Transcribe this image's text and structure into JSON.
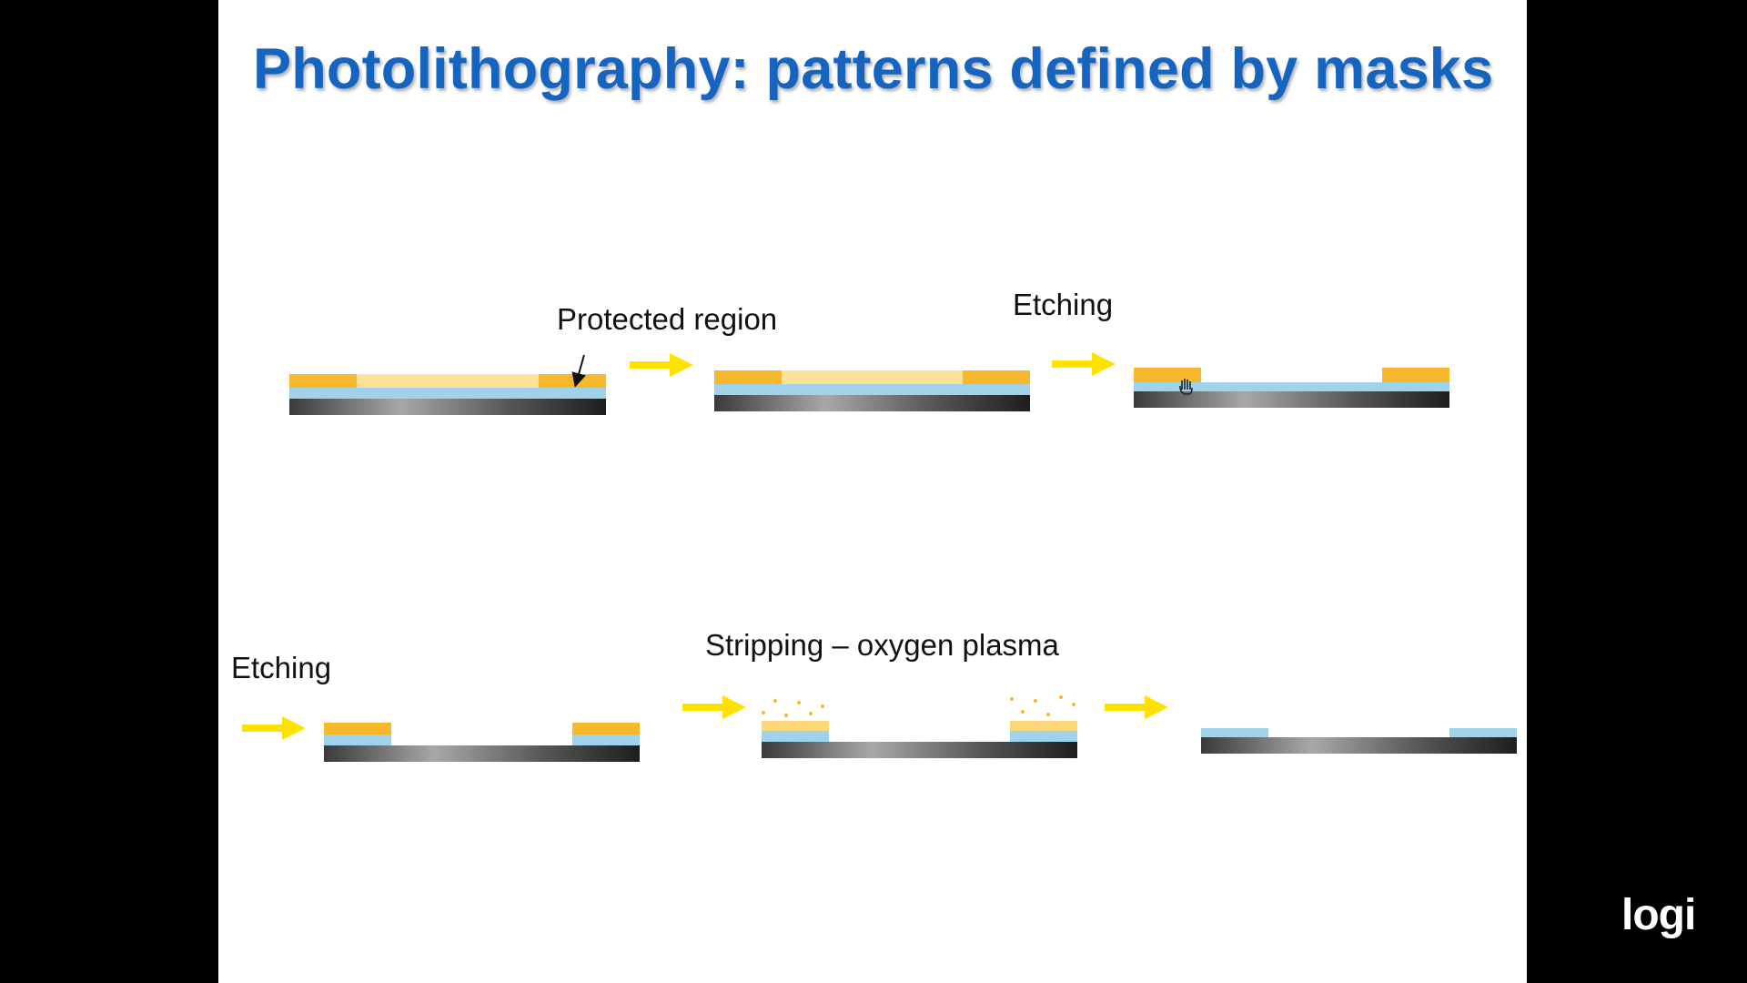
{
  "slide": {
    "title": "Photolithography: patterns defined by masks",
    "labels": {
      "protected_region": "Protected region",
      "etching_top": "Etching",
      "etching_bottom": "Etching",
      "stripping": "Stripping – oxygen plasma"
    },
    "colors": {
      "title": "#1565c0",
      "resist": "#f8b82c",
      "resist_exposed": "#fde39a",
      "film": "#9fd3ec",
      "substrate_dark": "#3a3a3a",
      "substrate_light": "#a8a8a8",
      "arrow": "#ffe300"
    }
  },
  "logo": {
    "text": "logi",
    "icon": "logi-logo-icon"
  }
}
